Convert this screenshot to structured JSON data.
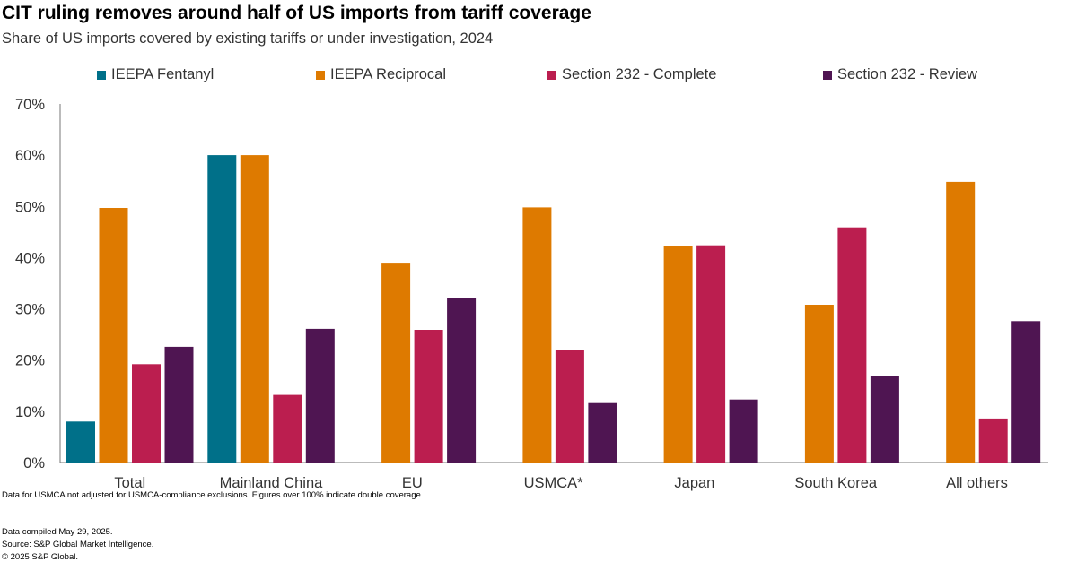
{
  "header": {
    "title": "CIT ruling removes around half of US imports from tariff coverage",
    "subtitle": "Share of US imports covered by existing tariffs or under investigation, 2024"
  },
  "chart_data": {
    "type": "bar",
    "categories": [
      "Total",
      "Mainland China",
      "EU",
      "USMCA*",
      "Japan",
      "South Korea",
      "All others"
    ],
    "series": [
      {
        "name": "IEEPA Fentanyl",
        "color": "#007089",
        "values": [
          8,
          60,
          0,
          0,
          0,
          0,
          0
        ]
      },
      {
        "name": "IEEPA Reciprocal",
        "color": "#DE7A00",
        "values": [
          49.7,
          60,
          39,
          49.8,
          42.3,
          30.8,
          54.8
        ]
      },
      {
        "name": "Section 232 - Complete",
        "color": "#BB1E4F",
        "values": [
          19.2,
          13.2,
          25.9,
          21.9,
          42.4,
          45.9,
          8.6
        ]
      },
      {
        "name": "Section 232 - Review",
        "color": "#4F1552",
        "values": [
          22.6,
          26.1,
          32.1,
          11.6,
          12.3,
          16.8,
          27.6
        ]
      }
    ],
    "yticks": [
      "0%",
      "10%",
      "20%",
      "30%",
      "40%",
      "50%",
      "60%",
      "70%"
    ],
    "ylim": [
      0,
      70
    ],
    "legend_position": "top",
    "grid": false
  },
  "notes": {
    "chart_note": "Data for USMCA not adjusted for USMCA-compliance exclusions. Figures over 100% indicate double coverage"
  },
  "footer": {
    "compiled": "Data compiled May 29, 2025.",
    "source": "Source: S&P Global Market Intelligence.",
    "copyright": "© 2025 S&P Global."
  }
}
